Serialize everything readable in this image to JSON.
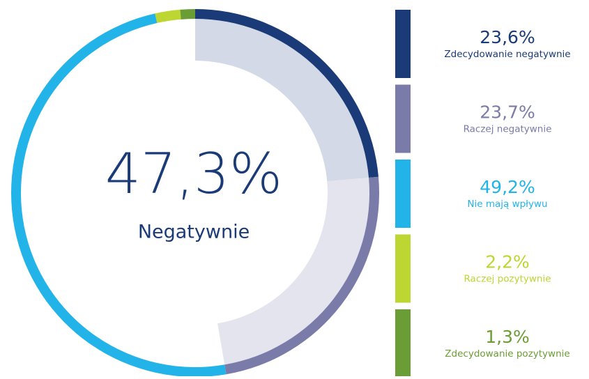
{
  "chart_data": {
    "type": "donut",
    "center_label": "47,3%",
    "center_text": "Negatywnie",
    "categories": [
      "Zdecydowanie negatywnie",
      "Raczej negatywnie",
      "Nie mają wpływu",
      "Raczej pozytywnie",
      "Zdecydowanie pozytywnie"
    ],
    "values": [
      23.6,
      23.7,
      49.2,
      2.2,
      1.3
    ],
    "value_labels": [
      "23,6%",
      "23,7%",
      "49,2%",
      "2,2%",
      "1,3%"
    ],
    "colors": [
      "#1b3b78",
      "#7a7ba9",
      "#22b4e8",
      "#bdd631",
      "#6a9d35"
    ],
    "highlight_colors": [
      "#d3d9e6",
      "#e3e4ee"
    ],
    "legend": "right"
  }
}
